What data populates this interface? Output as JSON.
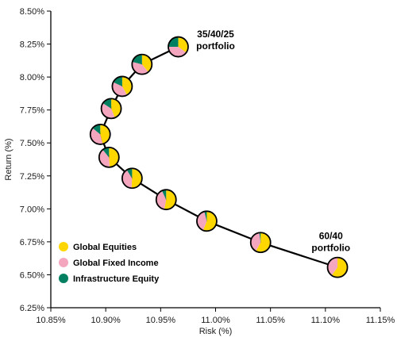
{
  "chart_data": {
    "type": "scatter",
    "title": "",
    "xlabel": "Risk (%)",
    "ylabel": "Return (%)",
    "xlim": [
      10.85,
      11.15
    ],
    "ylim": [
      6.25,
      8.5
    ],
    "x_ticks": [
      "10.85%",
      "10.90%",
      "10.95%",
      "11.00%",
      "11.05%",
      "11.10%",
      "11.15%"
    ],
    "y_ticks": [
      "6.25%",
      "6.50%",
      "6.75%",
      "7.00%",
      "7.25%",
      "7.50%",
      "7.75%",
      "8.00%",
      "8.25%",
      "8.50%"
    ],
    "grid": false,
    "legend_position": "bottom-left",
    "components": [
      {
        "name": "Global Equities",
        "color": "#FFD700"
      },
      {
        "name": "Global Fixed Income",
        "color": "#F4A6BF"
      },
      {
        "name": "Infrastructure Equity",
        "color": "#008060"
      }
    ],
    "points": [
      {
        "x": 11.111,
        "y": 6.556,
        "weights": [
          0.6,
          0.4,
          0.0
        ]
      },
      {
        "x": 11.041,
        "y": 6.745,
        "weights": [
          0.58,
          0.4,
          0.02
        ]
      },
      {
        "x": 10.992,
        "y": 6.907,
        "weights": [
          0.56,
          0.4,
          0.04
        ]
      },
      {
        "x": 10.955,
        "y": 7.07,
        "weights": [
          0.53,
          0.4,
          0.07
        ]
      },
      {
        "x": 10.924,
        "y": 7.232,
        "weights": [
          0.51,
          0.4,
          0.09
        ]
      },
      {
        "x": 10.903,
        "y": 7.391,
        "weights": [
          0.49,
          0.4,
          0.11
        ]
      },
      {
        "x": 10.895,
        "y": 7.565,
        "weights": [
          0.46,
          0.4,
          0.14
        ]
      },
      {
        "x": 10.905,
        "y": 7.761,
        "weights": [
          0.44,
          0.4,
          0.16
        ]
      },
      {
        "x": 10.915,
        "y": 7.929,
        "weights": [
          0.42,
          0.4,
          0.18
        ]
      },
      {
        "x": 10.933,
        "y": 8.096,
        "weights": [
          0.39,
          0.4,
          0.21
        ]
      },
      {
        "x": 10.966,
        "y": 8.229,
        "weights": [
          0.35,
          0.4,
          0.25
        ]
      }
    ],
    "annotations": [
      {
        "lines": [
          "35/40/25",
          "portfolio"
        ],
        "x": 11.0,
        "y": 8.3
      },
      {
        "lines": [
          "60/40",
          "portfolio"
        ],
        "x": 11.105,
        "y": 6.77
      }
    ]
  }
}
